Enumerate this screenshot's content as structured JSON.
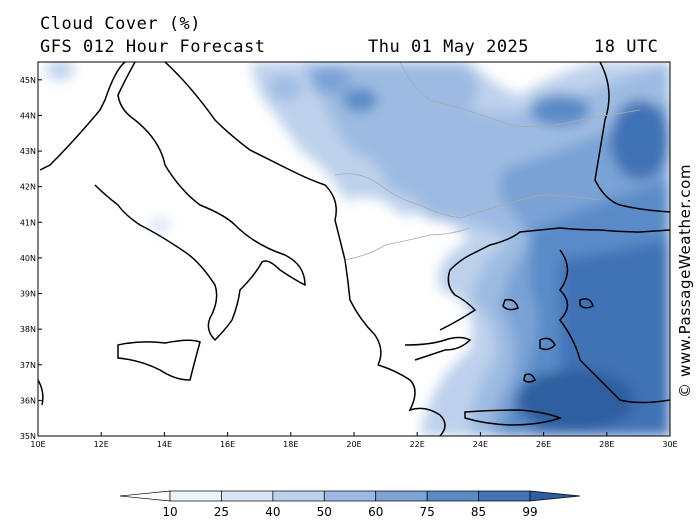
{
  "header": {
    "title": "Cloud Cover (%)",
    "subtitle": "GFS 012 Hour Forecast",
    "date": "Thu 01 May 2025",
    "utc": "18 UTC"
  },
  "credit": "© www.PassageWeather.com",
  "map": {
    "lon_range": [
      10,
      30
    ],
    "lat_range": [
      35,
      45.5
    ],
    "lat_labels": [
      "35N",
      "36N",
      "37N",
      "38N",
      "39N",
      "40N",
      "41N",
      "42N",
      "43N",
      "44N",
      "45N"
    ],
    "lon_labels": [
      "10E",
      "12E",
      "14E",
      "16E",
      "18E",
      "20E",
      "22E",
      "24E",
      "26E",
      "28E",
      "30E"
    ]
  },
  "colorbar": {
    "labels": [
      "10",
      "25",
      "40",
      "50",
      "60",
      "75",
      "85",
      "99"
    ],
    "colors": [
      "#ffffff",
      "#eef3fb",
      "#d8e4f4",
      "#bdd1ec",
      "#9dbbe2",
      "#7ba3d6",
      "#5a8bc8",
      "#3f72b6",
      "#2d5f9f"
    ]
  }
}
